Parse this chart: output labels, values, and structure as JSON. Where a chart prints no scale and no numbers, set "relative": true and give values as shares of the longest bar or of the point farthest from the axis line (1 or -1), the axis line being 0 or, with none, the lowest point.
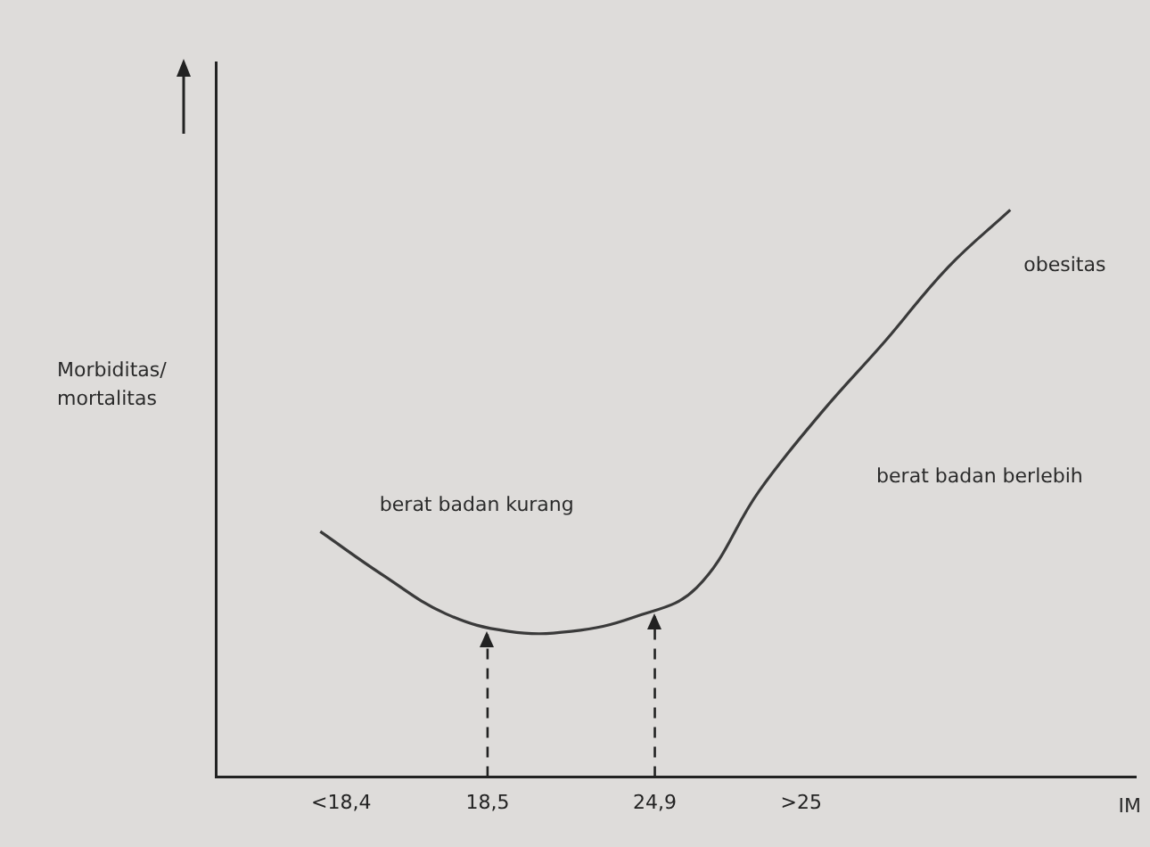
{
  "chart_data": {
    "type": "line",
    "relative": true,
    "xlabel": "IM",
    "ylabel": "Morbiditas/mortalitas",
    "categories": [
      null,
      null,
      null,
      null,
      null,
      null,
      "<18,4",
      null,
      null,
      null,
      null,
      null,
      null,
      "18,5",
      null,
      null,
      null,
      null,
      null,
      null,
      null,
      "24,9",
      null,
      null,
      null,
      null,
      null,
      null,
      ">25",
      null,
      null,
      null,
      null,
      null,
      null,
      null,
      null,
      null,
      null,
      null,
      null,
      null,
      null,
      null,
      null
    ],
    "series": [
      {
        "color": "#3a3a3a",
        "values": [
          null,
          null,
          null,
          null,
          null,
          0.433,
          null,
          null,
          0.356,
          null,
          null,
          0.288,
          null,
          null,
          0.257,
          null,
          null,
          0.257,
          null,
          null,
          0.282,
          null,
          null,
          0.334,
          null,
          null,
          0.505,
          null,
          null,
          0.644,
          null,
          null,
          0.768,
          null,
          null,
          0.898,
          null,
          null,
          1,
          null,
          null,
          null,
          null,
          null,
          null
        ]
      }
    ],
    "ref_lines": [
      {
        "axis": "x",
        "value": "18,5",
        "line_style": "dashed"
      },
      {
        "axis": "x",
        "value": "24,9",
        "line_style": "dashed"
      }
    ],
    "annotations": [
      "berat badan kurang",
      "berat badan berlebih",
      "obesitas"
    ],
    "grid": false,
    "legend": false,
    "marker": "none",
    "line_style": "solid"
  }
}
